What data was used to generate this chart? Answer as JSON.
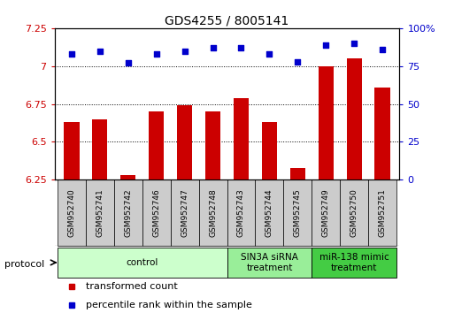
{
  "title": "GDS4255 / 8005141",
  "samples": [
    "GSM952740",
    "GSM952741",
    "GSM952742",
    "GSM952746",
    "GSM952747",
    "GSM952748",
    "GSM952743",
    "GSM952744",
    "GSM952745",
    "GSM952749",
    "GSM952750",
    "GSM952751"
  ],
  "bar_values": [
    6.63,
    6.65,
    6.28,
    6.7,
    6.74,
    6.7,
    6.79,
    6.63,
    6.33,
    7.0,
    7.05,
    6.86
  ],
  "dot_values": [
    83,
    85,
    77,
    83,
    85,
    87,
    87,
    83,
    78,
    89,
    90,
    86
  ],
  "ylim_left": [
    6.25,
    7.25
  ],
  "ylim_right": [
    0,
    100
  ],
  "yticks_left": [
    6.25,
    6.5,
    6.75,
    7.0,
    7.25
  ],
  "yticks_right": [
    0,
    25,
    50,
    75,
    100
  ],
  "ytick_labels_left": [
    "6.25",
    "6.5",
    "6.75",
    "7",
    "7.25"
  ],
  "ytick_labels_right": [
    "0",
    "25",
    "50",
    "75",
    "100%"
  ],
  "bar_color": "#cc0000",
  "dot_color": "#0000cc",
  "bar_bottom": 6.25,
  "groups": [
    {
      "label": "control",
      "start": 0,
      "end": 5,
      "color": "#ccffcc"
    },
    {
      "label": "SIN3A siRNA\ntreatment",
      "start": 6,
      "end": 8,
      "color": "#99ee99"
    },
    {
      "label": "miR-138 mimic\ntreatment",
      "start": 9,
      "end": 11,
      "color": "#44cc44"
    }
  ],
  "legend_items": [
    {
      "label": "transformed count",
      "color": "#cc0000"
    },
    {
      "label": "percentile rank within the sample",
      "color": "#0000cc"
    }
  ],
  "protocol_label": "protocol",
  "grid_color": "#000000",
  "background_color": "#ffffff",
  "plot_bg": "#ffffff",
  "sample_box_color": "#cccccc",
  "title_fontsize": 10,
  "bar_width": 0.55
}
